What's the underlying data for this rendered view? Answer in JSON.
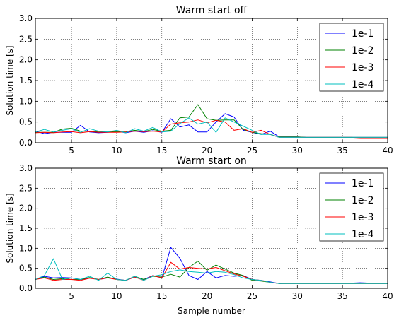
{
  "chart_data": [
    {
      "type": "line",
      "title": "Warm start off",
      "xlabel": "",
      "ylabel": "Solution time [s]",
      "xlim": [
        1,
        40
      ],
      "ylim": [
        0,
        3.0
      ],
      "xticks": [
        5,
        10,
        15,
        20,
        25,
        30,
        35,
        40
      ],
      "yticks": [
        0.0,
        0.5,
        1.0,
        1.5,
        2.0,
        2.5,
        3.0
      ],
      "grid": true,
      "legend_position": "top-right",
      "x": [
        1,
        2,
        3,
        4,
        5,
        6,
        7,
        8,
        9,
        10,
        11,
        12,
        13,
        14,
        15,
        16,
        17,
        18,
        19,
        20,
        21,
        22,
        23,
        24,
        25,
        26,
        27,
        28,
        29,
        30,
        31,
        32,
        33,
        34,
        35,
        36,
        37,
        38,
        39,
        40
      ],
      "series": [
        {
          "name": "1e-1",
          "color": "#0000ff",
          "values": [
            0.28,
            0.22,
            0.25,
            0.25,
            0.25,
            0.42,
            0.26,
            0.24,
            0.25,
            0.28,
            0.24,
            0.28,
            0.25,
            0.29,
            0.25,
            0.58,
            0.38,
            0.43,
            0.26,
            0.26,
            0.5,
            0.7,
            0.62,
            0.3,
            0.25,
            0.2,
            0.28,
            0.14,
            0.14,
            0.14,
            0.13,
            0.13,
            0.13,
            0.13,
            0.13,
            0.13,
            0.13,
            0.13,
            0.13,
            0.13
          ]
        },
        {
          "name": "1e-2",
          "color": "#008000",
          "values": [
            0.25,
            0.25,
            0.25,
            0.33,
            0.35,
            0.28,
            0.28,
            0.26,
            0.26,
            0.27,
            0.26,
            0.3,
            0.27,
            0.32,
            0.28,
            0.3,
            0.6,
            0.62,
            0.92,
            0.58,
            0.54,
            0.55,
            0.55,
            0.32,
            0.25,
            0.22,
            0.2,
            0.14,
            0.14,
            0.14,
            0.13,
            0.13,
            0.13,
            0.13,
            0.13,
            0.13,
            0.13,
            0.13,
            0.13,
            0.13
          ]
        },
        {
          "name": "1e-3",
          "color": "#ff0000",
          "values": [
            0.24,
            0.25,
            0.24,
            0.26,
            0.27,
            0.24,
            0.27,
            0.25,
            0.25,
            0.25,
            0.26,
            0.28,
            0.27,
            0.28,
            0.26,
            0.45,
            0.48,
            0.5,
            0.55,
            0.48,
            0.54,
            0.5,
            0.3,
            0.34,
            0.25,
            0.3,
            0.2,
            0.13,
            0.13,
            0.13,
            0.13,
            0.13,
            0.13,
            0.13,
            0.13,
            0.13,
            0.12,
            0.12,
            0.12,
            0.12
          ]
        },
        {
          "name": "1e-4",
          "color": "#00bfbf",
          "values": [
            0.26,
            0.32,
            0.26,
            0.3,
            0.34,
            0.25,
            0.34,
            0.28,
            0.26,
            0.3,
            0.24,
            0.34,
            0.28,
            0.37,
            0.26,
            0.28,
            0.46,
            0.6,
            0.45,
            0.5,
            0.25,
            0.6,
            0.5,
            0.4,
            0.3,
            0.2,
            0.2,
            0.13,
            0.13,
            0.13,
            0.13,
            0.13,
            0.13,
            0.13,
            0.13,
            0.13,
            0.13,
            0.13,
            0.13,
            0.13
          ]
        }
      ]
    },
    {
      "type": "line",
      "title": "Warm start on",
      "xlabel": "Sample number",
      "ylabel": "Solution time [s]",
      "xlim": [
        1,
        40
      ],
      "ylim": [
        0,
        3.0
      ],
      "xticks": [
        5,
        10,
        15,
        20,
        25,
        30,
        35,
        40
      ],
      "yticks": [
        0.0,
        0.5,
        1.0,
        1.5,
        2.0,
        2.5,
        3.0
      ],
      "grid": true,
      "legend_position": "top-right",
      "x": [
        1,
        2,
        3,
        4,
        5,
        6,
        7,
        8,
        9,
        10,
        11,
        12,
        13,
        14,
        15,
        16,
        17,
        18,
        19,
        20,
        21,
        22,
        23,
        24,
        25,
        26,
        27,
        28,
        29,
        30,
        31,
        32,
        33,
        34,
        35,
        36,
        37,
        38,
        39,
        40
      ],
      "series": [
        {
          "name": "1e-1",
          "color": "#0000ff",
          "values": [
            0.22,
            0.3,
            0.26,
            0.27,
            0.26,
            0.22,
            0.26,
            0.22,
            0.26,
            0.23,
            0.2,
            0.28,
            0.22,
            0.32,
            0.26,
            1.02,
            0.75,
            0.32,
            0.22,
            0.42,
            0.26,
            0.32,
            0.3,
            0.32,
            0.22,
            0.2,
            0.16,
            0.12,
            0.13,
            0.13,
            0.13,
            0.13,
            0.13,
            0.13,
            0.13,
            0.13,
            0.14,
            0.13,
            0.13,
            0.13
          ]
        },
        {
          "name": "1e-2",
          "color": "#008000",
          "values": [
            0.22,
            0.28,
            0.22,
            0.24,
            0.22,
            0.22,
            0.27,
            0.22,
            0.28,
            0.22,
            0.2,
            0.3,
            0.22,
            0.3,
            0.28,
            0.35,
            0.28,
            0.52,
            0.68,
            0.45,
            0.58,
            0.48,
            0.38,
            0.32,
            0.2,
            0.18,
            0.15,
            0.12,
            0.12,
            0.12,
            0.12,
            0.12,
            0.12,
            0.12,
            0.12,
            0.12,
            0.12,
            0.12,
            0.12,
            0.12
          ]
        },
        {
          "name": "1e-3",
          "color": "#ff0000",
          "values": [
            0.22,
            0.26,
            0.2,
            0.22,
            0.22,
            0.2,
            0.25,
            0.22,
            0.26,
            0.22,
            0.2,
            0.28,
            0.2,
            0.32,
            0.26,
            0.65,
            0.48,
            0.52,
            0.5,
            0.48,
            0.52,
            0.44,
            0.36,
            0.3,
            0.22,
            0.2,
            0.15,
            0.12,
            0.12,
            0.12,
            0.12,
            0.12,
            0.12,
            0.12,
            0.12,
            0.12,
            0.12,
            0.12,
            0.12,
            0.12
          ]
        },
        {
          "name": "1e-4",
          "color": "#00bfbf",
          "values": [
            0.22,
            0.32,
            0.74,
            0.22,
            0.26,
            0.22,
            0.3,
            0.2,
            0.38,
            0.22,
            0.2,
            0.3,
            0.2,
            0.3,
            0.34,
            0.42,
            0.46,
            0.42,
            0.4,
            0.38,
            0.42,
            0.4,
            0.34,
            0.26,
            0.22,
            0.2,
            0.15,
            0.12,
            0.12,
            0.12,
            0.12,
            0.12,
            0.12,
            0.12,
            0.12,
            0.12,
            0.12,
            0.12,
            0.12,
            0.12
          ]
        }
      ]
    }
  ]
}
